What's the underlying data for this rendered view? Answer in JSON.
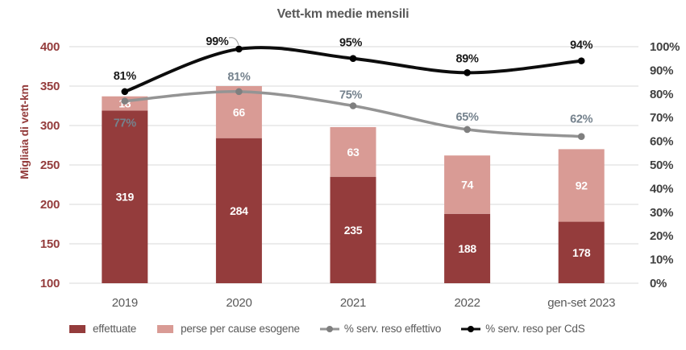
{
  "chart_data": {
    "type": "bar",
    "subtype": "stacked-bar-with-lines-combo",
    "title": "Vett-km medie mensili",
    "ylabel_left": "Migliaia di vett-km",
    "categories": [
      "2019",
      "2020",
      "2021",
      "2022",
      "gen-set 2023"
    ],
    "bar_series": [
      {
        "name": "effettuate",
        "color": "#943C3C",
        "values": [
          319,
          284,
          235,
          188,
          178
        ]
      },
      {
        "name": "perse per cause esogene",
        "color": "#D99B95",
        "values": [
          18,
          66,
          63,
          74,
          92
        ]
      }
    ],
    "line_series": [
      {
        "name": "% serv. reso effettivo",
        "color": "#949494",
        "marker_color": "#7F7F7F",
        "label_color": "#75828D",
        "values": [
          77,
          81,
          75,
          65,
          62
        ],
        "suffix": "%"
      },
      {
        "name": "% serv. reso per CdS",
        "color": "#0D0D0D",
        "marker_color": "#000000",
        "label_color": "#1A1A1A",
        "values": [
          81,
          99,
          95,
          89,
          94
        ],
        "suffix": "%"
      }
    ],
    "y_left": {
      "min": 100,
      "max": 400,
      "step": 50
    },
    "y_right": {
      "min": 0,
      "max": 100,
      "step": 10,
      "suffix": "%"
    },
    "grid": true,
    "legend_position": "bottom-left"
  },
  "colors": {
    "grid": "#D9D9D9",
    "axis_left_text": "#943C3C",
    "axis_right_text": "#404040",
    "category_text": "#595959",
    "title_text": "#595959",
    "bar_value_label": "#FFFFFF",
    "leader_line": "#A6A6A6",
    "background": "#FFFFFF"
  }
}
